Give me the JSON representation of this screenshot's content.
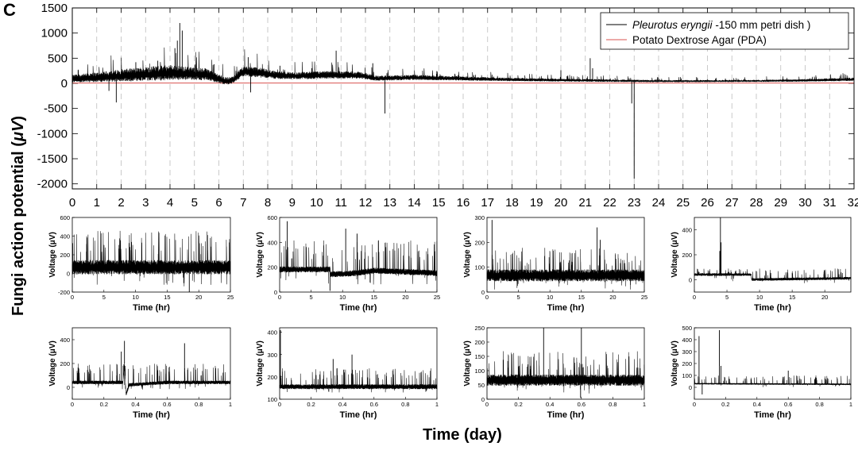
{
  "figure": {
    "panel_label": "C",
    "ylabel_prefix": "Fungi action potential (",
    "ylabel_unit": "μV",
    "ylabel_suffix": ")",
    "xlabel": "Time (day)"
  },
  "chart_data": [
    {
      "id": "main",
      "type": "line",
      "title": "",
      "xlabel": "Time (day)",
      "ylabel": "Fungi action potential (μV)",
      "xlim": [
        0,
        32
      ],
      "ylim": [
        -2100,
        1500
      ],
      "xticks": [
        0,
        1,
        2,
        3,
        4,
        5,
        6,
        7,
        8,
        9,
        10,
        11,
        12,
        13,
        14,
        15,
        16,
        17,
        18,
        19,
        20,
        21,
        22,
        23,
        24,
        25,
        26,
        27,
        28,
        29,
        30,
        31,
        32
      ],
      "yticks": [
        -2000,
        -1500,
        -1000,
        -500,
        0,
        500,
        1000,
        1500
      ],
      "grid": "vertical dashed at each day",
      "legend_position": "top-right",
      "legend": {
        "species": "Pleurotus eryngii",
        "species_rest": " -150 mm petri dish )",
        "medium": "Potato Dextrose Agar (PDA)"
      },
      "series": [
        {
          "name": "Pleurotus eryngii -150 mm petri dish )",
          "color": "#000000",
          "segments": [
            [
              0,
              80,
              90
            ],
            [
              1.2,
              110,
              120
            ],
            [
              1.9,
              135,
              140
            ],
            [
              3,
              160,
              170
            ],
            [
              4,
              190,
              180
            ],
            [
              4.5,
              180,
              160
            ],
            [
              5.5,
              160,
              140
            ],
            [
              6.3,
              30,
              90
            ],
            [
              6.6,
              60,
              80
            ],
            [
              7,
              230,
              130
            ],
            [
              7.6,
              200,
              120
            ],
            [
              8.4,
              150,
              90
            ],
            [
              9.2,
              140,
              80
            ],
            [
              10,
              150,
              90
            ],
            [
              11,
              160,
              90
            ],
            [
              11.8,
              150,
              80
            ],
            [
              12.5,
              90,
              60
            ],
            [
              14,
              110,
              60
            ],
            [
              16,
              90,
              50
            ],
            [
              18,
              70,
              40
            ],
            [
              20,
              60,
              35
            ],
            [
              22,
              50,
              30
            ],
            [
              24,
              40,
              25
            ],
            [
              28,
              45,
              25
            ],
            [
              30,
              55,
              30
            ],
            [
              32,
              75,
              40
            ]
          ],
          "spikes": [
            [
              1.8,
              -380
            ],
            [
              1.5,
              -150
            ],
            [
              4.4,
              1200
            ],
            [
              4.5,
              1050
            ],
            [
              4.3,
              850
            ],
            [
              4.2,
              700
            ],
            [
              7.3,
              -180
            ],
            [
              7.2,
              520
            ],
            [
              8.5,
              350
            ],
            [
              10.8,
              650
            ],
            [
              12.8,
              -600
            ],
            [
              12.3,
              400
            ],
            [
              20.0,
              260
            ],
            [
              21.2,
              500
            ],
            [
              21.3,
              300
            ],
            [
              23.0,
              -1900
            ],
            [
              22.9,
              -400
            ],
            [
              3.5,
              450
            ],
            [
              2.6,
              420
            ],
            [
              5.8,
              380
            ],
            [
              9.8,
              300
            ]
          ]
        },
        {
          "name": "Potato Dextrose Agar (PDA)",
          "color": "#d9534f",
          "values_t": [
            0,
            32
          ],
          "values_v": [
            5,
            5
          ]
        }
      ]
    },
    {
      "id": "sub1",
      "type": "line",
      "xlabel": "Time (hr)",
      "ylabel": "Voltage (μV)",
      "xlim": [
        0,
        25
      ],
      "ylim": [
        -200,
        600
      ],
      "xticks": [
        0,
        5,
        10,
        15,
        20,
        25
      ],
      "yticks": [
        -200,
        0,
        200,
        400,
        600
      ],
      "baseline": [
        [
          0,
          60
        ],
        [
          25,
          60
        ]
      ],
      "noise": 70,
      "spikes_up": 460,
      "spikes_down": -140,
      "events": [
        [
          18.5,
          -200
        ]
      ]
    },
    {
      "id": "sub2",
      "type": "line",
      "xlabel": "Time (hr)",
      "ylabel": "Voltage (μV)",
      "xlim": [
        0,
        25
      ],
      "ylim": [
        0,
        600
      ],
      "xticks": [
        0,
        5,
        10,
        15,
        20,
        25
      ],
      "yticks": [
        0,
        200,
        400,
        600
      ],
      "baseline": [
        [
          0,
          180
        ],
        [
          8,
          180
        ],
        [
          8.1,
          140
        ],
        [
          12,
          150
        ],
        [
          15,
          170
        ],
        [
          25,
          150
        ]
      ],
      "noise": 22,
      "spikes_up": 420,
      "spikes_down": 60,
      "events": [
        [
          1.2,
          570
        ],
        [
          8.0,
          10
        ],
        [
          10.5,
          510
        ],
        [
          12.3,
          470
        ]
      ]
    },
    {
      "id": "sub3",
      "type": "line",
      "xlabel": "Time (hr)",
      "ylabel": "Voltage (μV)",
      "xlim": [
        0,
        25
      ],
      "ylim": [
        0,
        300
      ],
      "xticks": [
        0,
        5,
        10,
        15,
        20,
        25
      ],
      "yticks": [
        0,
        100,
        200,
        300
      ],
      "baseline": [
        [
          0,
          65
        ],
        [
          25,
          65
        ]
      ],
      "noise": 22,
      "spikes_up": 180,
      "spikes_down": 10,
      "events": [
        [
          0.8,
          290
        ],
        [
          17.5,
          260
        ],
        [
          18.0,
          210
        ]
      ]
    },
    {
      "id": "sub4",
      "type": "line",
      "xlabel": "Time (hr)",
      "ylabel": "Voltage (μV)",
      "xlim": [
        0,
        24
      ],
      "ylim": [
        -100,
        500
      ],
      "xticks": [
        0,
        5,
        10,
        15,
        20
      ],
      "yticks": [
        0,
        200,
        400
      ],
      "baseline": [
        [
          0,
          40
        ],
        [
          8.7,
          40
        ],
        [
          8.8,
          0
        ],
        [
          24,
          10
        ]
      ],
      "noise": 10,
      "spikes_up": 90,
      "spikes_down": -30,
      "events": [
        [
          4.0,
          520
        ],
        [
          3.9,
          230
        ],
        [
          4.1,
          300
        ]
      ]
    },
    {
      "id": "sub5",
      "type": "line",
      "xlabel": "Time (hr)",
      "ylabel": "Voltage (μV)",
      "xlim": [
        0,
        1
      ],
      "ylim": [
        -100,
        500
      ],
      "xticks": [
        0,
        0.2,
        0.4,
        0.6,
        0.8,
        1
      ],
      "yticks": [
        0,
        200,
        400
      ],
      "baseline": [
        [
          0,
          40
        ],
        [
          0.32,
          40
        ],
        [
          0.33,
          200
        ],
        [
          0.34,
          -60
        ],
        [
          0.36,
          20
        ],
        [
          0.6,
          40
        ],
        [
          1,
          40
        ]
      ],
      "noise": 14,
      "spikes_up": 200,
      "spikes_down": -20,
      "events": [
        [
          0.33,
          390
        ],
        [
          0.31,
          300
        ],
        [
          0.71,
          370
        ]
      ]
    },
    {
      "id": "sub6",
      "type": "line",
      "xlabel": "Time (hr)",
      "ylabel": "Voltage (μV)",
      "xlim": [
        0,
        1
      ],
      "ylim": [
        100,
        420
      ],
      "xticks": [
        0,
        0.2,
        0.4,
        0.6,
        0.8,
        1
      ],
      "yticks": [
        100,
        200,
        300,
        400
      ],
      "baseline": [
        [
          0,
          155
        ],
        [
          1,
          155
        ]
      ],
      "noise": 10,
      "spikes_up": 240,
      "spikes_down": 130,
      "events": [
        [
          0.005,
          410
        ],
        [
          0.34,
          280
        ],
        [
          0.46,
          300
        ]
      ]
    },
    {
      "id": "sub7",
      "type": "line",
      "xlabel": "Time (hr)",
      "ylabel": "Voltage (μV)",
      "xlim": [
        0,
        1
      ],
      "ylim": [
        0,
        250
      ],
      "xticks": [
        0,
        0.2,
        0.4,
        0.6,
        0.8,
        1
      ],
      "yticks": [
        0,
        50,
        100,
        150,
        200,
        250
      ],
      "baseline": [
        [
          0,
          65
        ],
        [
          1,
          65
        ]
      ],
      "noise": 18,
      "spikes_up": 170,
      "spikes_down": 20,
      "events": [
        [
          0.36,
          250
        ],
        [
          0.6,
          250
        ],
        [
          0.595,
          5
        ]
      ]
    },
    {
      "id": "sub8",
      "type": "line",
      "xlabel": "Time (hr)",
      "ylabel": "Voltage (μV)",
      "xlim": [
        0,
        1
      ],
      "ylim": [
        -100,
        500
      ],
      "xticks": [
        0,
        0.2,
        0.4,
        0.6,
        0.8,
        1
      ],
      "yticks": [
        0,
        100,
        200,
        300,
        400,
        500
      ],
      "baseline": [
        [
          0,
          30
        ],
        [
          1,
          25
        ]
      ],
      "noise": 6,
      "spikes_up": 100,
      "spikes_down": 0,
      "events": [
        [
          0.03,
          430
        ],
        [
          0.16,
          480
        ],
        [
          0.17,
          180
        ],
        [
          0.05,
          -60
        ],
        [
          0.6,
          140
        ]
      ]
    }
  ]
}
